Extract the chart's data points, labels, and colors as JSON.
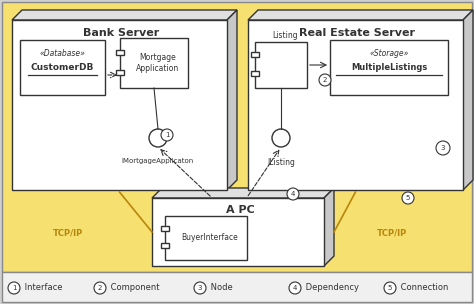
{
  "bg_color": "#F5E070",
  "white": "#FFFFFF",
  "gray": "#CCCCCC",
  "dark": "#333333",
  "light_gray": "#E8E8E8",
  "node_top": "#E0E0E0",
  "node_right": "#C8C8C8",
  "legend_bg": "#F0F0F0",
  "outer_bg": "#D0D0D0",
  "tcpip_color": "#B8860B",
  "bank_server_title": "Bank Server",
  "real_estate_title": "Real Estate Server",
  "apc_title": "A PC",
  "customerdb_label1": "«Database»",
  "customerdb_label2": "CustomerDB",
  "mortgage_label": "Mortgage\nApplication",
  "imortgage_label": "IMortgageApplicaton",
  "listing_label": "Listing",
  "multilisting_label1": "«Storage»",
  "multilisting_label2": "MultipleListings",
  "ilisting_label": "IListing",
  "buyer_label": "BuyerInterface",
  "tcpip_label": "TCP/IP",
  "legend": [
    {
      "num": "1",
      "text": " Interface"
    },
    {
      "num": "2",
      "text": " Component"
    },
    {
      "num": "3",
      "text": " Node"
    },
    {
      "num": "4",
      "text": " Dependency"
    },
    {
      "num": "5",
      "text": " Connection"
    }
  ]
}
